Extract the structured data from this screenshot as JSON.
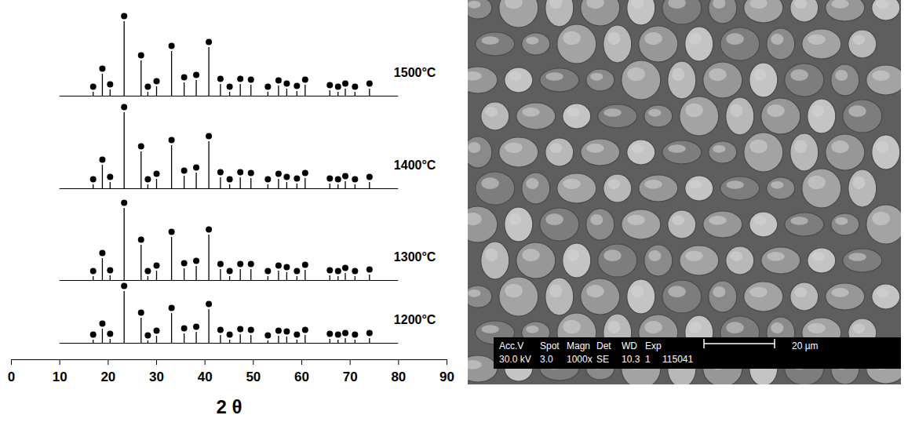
{
  "chart_data": {
    "type": "spike",
    "x_label": "2 θ",
    "xlim": [
      0,
      90
    ],
    "xticks": [
      0,
      10,
      20,
      30,
      40,
      50,
      60,
      70,
      80,
      90
    ],
    "ylim": [
      0,
      450
    ],
    "tick_labels": "x",
    "grid": false,
    "marker": "circle",
    "color": "#000000",
    "trace_range": [
      10,
      80
    ],
    "x": [
      16.9,
      18.8,
      20.4,
      23.3,
      26.8,
      28.2,
      30.0,
      33.1,
      35.7,
      38.2,
      40.8,
      43.2,
      45.1,
      47.3,
      49.5,
      53.0,
      55.2,
      56.9,
      59.0,
      60.7,
      65.8,
      67.5,
      69.0,
      71.0,
      74.0
    ],
    "series": [
      {
        "name": "1200°C",
        "offset": 21,
        "values": [
          4,
          18,
          5,
          66,
          32,
          3,
          9,
          38,
          12,
          14,
          43,
          10,
          4,
          11,
          10,
          3,
          9,
          8,
          4,
          10,
          5,
          4,
          6,
          4,
          6
        ]
      },
      {
        "name": "1300°C",
        "offset": 101,
        "values": [
          5,
          28,
          6,
          92,
          45,
          5,
          12,
          55,
          15,
          18,
          58,
          14,
          5,
          14,
          14,
          5,
          12,
          10,
          5,
          13,
          6,
          5,
          9,
          5,
          7
        ]
      },
      {
        "name": "1400°C",
        "offset": 218,
        "values": [
          5,
          30,
          8,
          97,
          47,
          5,
          12,
          55,
          16,
          20,
          60,
          14,
          5,
          14,
          13,
          5,
          12,
          8,
          6,
          13,
          6,
          5,
          9,
          5,
          8
        ]
      },
      {
        "name": "1500°C",
        "offset": 336,
        "values": [
          5,
          28,
          8,
          95,
          45,
          5,
          12,
          57,
          17,
          20,
          62,
          15,
          5,
          15,
          14,
          5,
          13,
          9,
          6,
          14,
          7,
          5,
          9,
          5,
          9
        ]
      }
    ]
  },
  "image": {
    "info_bar": {
      "headers": [
        "Acc.V",
        "Spot",
        "Magn",
        "Det",
        "WD",
        "Exp"
      ],
      "values": [
        "30.0 kV",
        "3.0",
        "1000x",
        "SE",
        "10.3",
        "1",
        "115041"
      ]
    },
    "scale_bar": "20 µm"
  }
}
